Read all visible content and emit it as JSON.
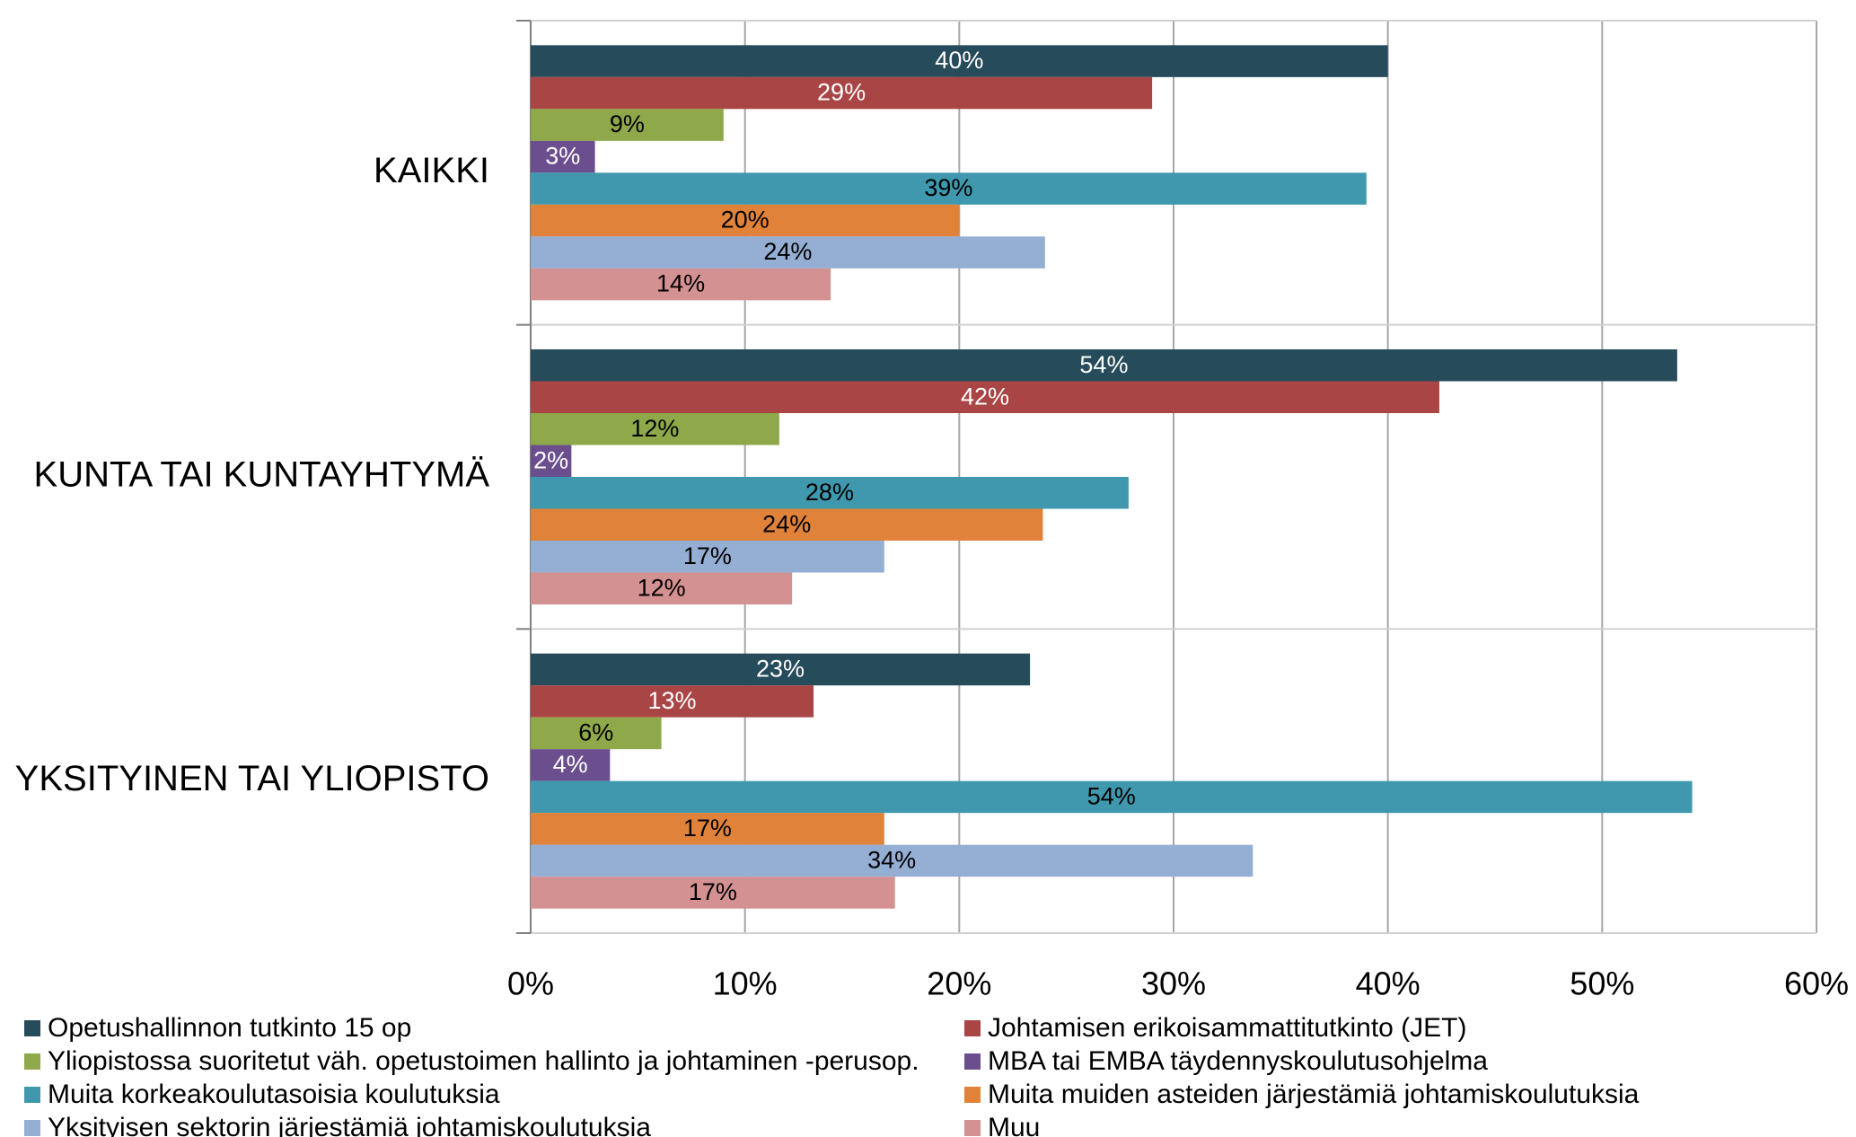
{
  "chart_data": {
    "type": "hbar",
    "categories": [
      "KAIKKI",
      "KUNTA TAI KUNTAYHTYMÄ",
      "YKSITYINEN TAI YLIOPISTO"
    ],
    "series": [
      {
        "name": "Opetushallinnon tutkinto 15 op",
        "color": "#264b5a",
        "values": [
          40,
          53.5,
          23.3
        ],
        "value_labels": [
          "40%",
          "54%",
          "23%"
        ]
      },
      {
        "name": "Johtamisen erikoisammattitutkinto (JET)",
        "color": "#a94545",
        "values": [
          29,
          42.4,
          13.2
        ],
        "value_labels": [
          "29%",
          "42%",
          "13%"
        ]
      },
      {
        "name": "Yliopistossa suoritetut väh. opetustoimen hallinto ja johtaminen -perusop.",
        "color": "#8ea84a",
        "values": [
          9,
          11.6,
          6.1
        ],
        "value_labels": [
          "9%",
          "12%",
          "6%"
        ]
      },
      {
        "name": "MBA tai EMBA täydennyskoulutusohjelma",
        "color": "#6a4e8e",
        "values": [
          3,
          1.9,
          3.7
        ],
        "value_labels": [
          "3%",
          "2%",
          "4%"
        ]
      },
      {
        "name": "Muita korkeakoulutasoisia koulutuksia",
        "color": "#3f98ae",
        "values": [
          39,
          27.9,
          54.2
        ],
        "value_labels": [
          "39%",
          "28%",
          "54%"
        ]
      },
      {
        "name": "Muita muiden asteiden järjestämiä johtamiskoulutuksia",
        "color": "#e0823a",
        "values": [
          20,
          23.9,
          16.5
        ],
        "value_labels": [
          "20%",
          "24%",
          "17%"
        ]
      },
      {
        "name": "Yksityisen sektorin järjestämiä johtamiskoulutuksia",
        "color": "#94aed4",
        "values": [
          24,
          16.5,
          33.7
        ],
        "value_labels": [
          "24%",
          "17%",
          "34%"
        ]
      },
      {
        "name": "Muu",
        "color": "#d49192",
        "values": [
          14,
          12.2,
          17
        ],
        "value_labels": [
          "14%",
          "12%",
          "17%"
        ]
      }
    ],
    "xlim": [
      0,
      60
    ],
    "xticks": [
      {
        "value": 0,
        "label": "0%"
      },
      {
        "value": 10,
        "label": "10%"
      },
      {
        "value": 20,
        "label": "20%"
      },
      {
        "value": 30,
        "label": "30%"
      },
      {
        "value": 40,
        "label": "40%"
      },
      {
        "value": 50,
        "label": "50%"
      },
      {
        "value": 60,
        "label": "60%"
      }
    ],
    "grid": true,
    "legend": "bottom"
  }
}
